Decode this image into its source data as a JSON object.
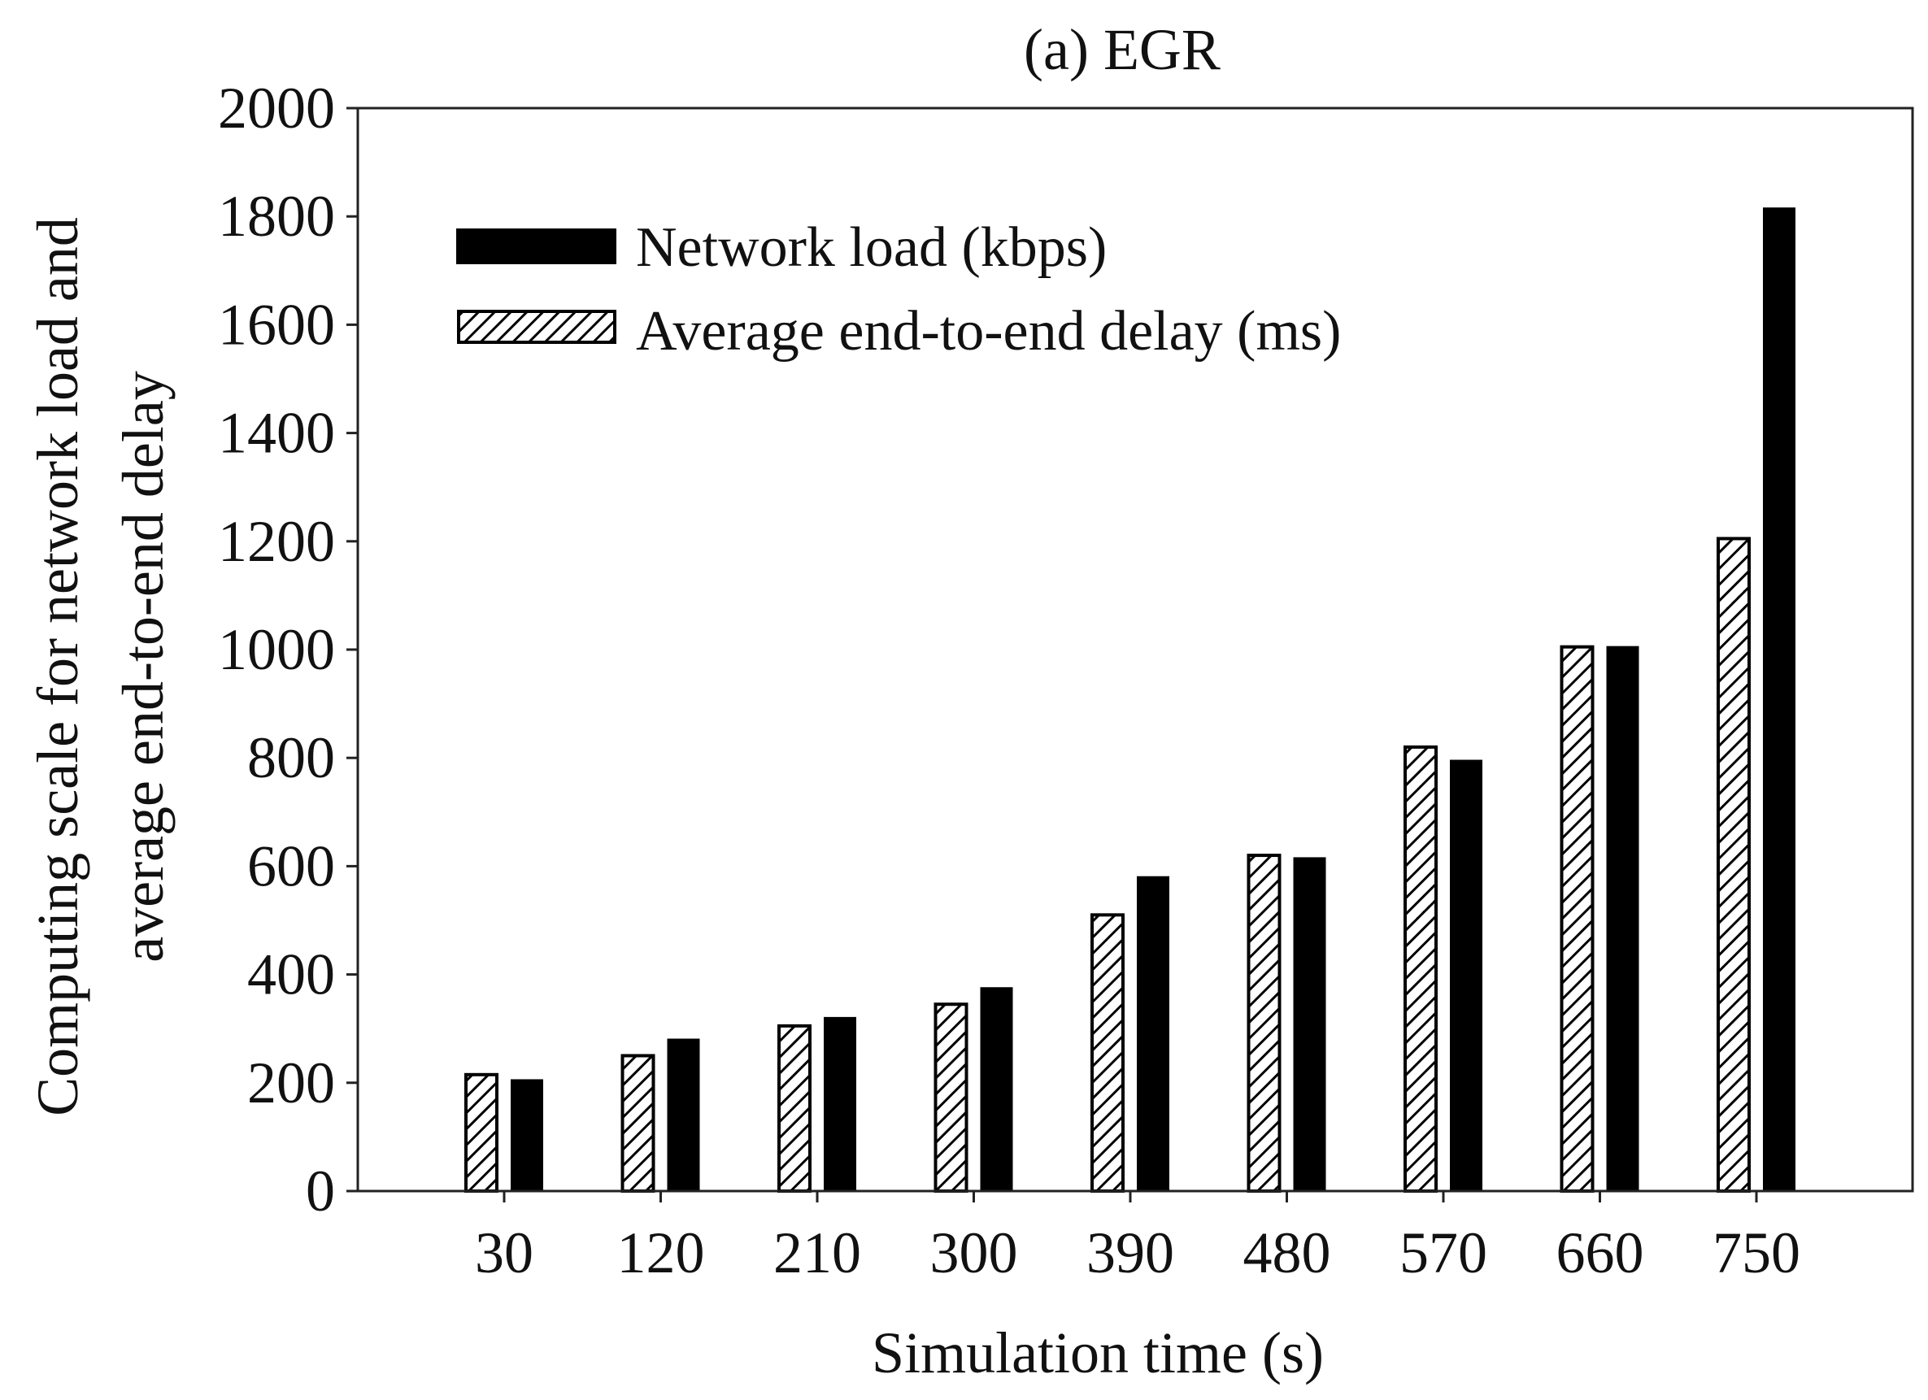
{
  "chart_data": {
    "type": "bar",
    "title": "(a) EGR",
    "xlabel": "Simulation time (s)",
    "ylabel_lines": [
      "Computing scale for network load and",
      "average end-to-end delay"
    ],
    "categories": [
      "30",
      "120",
      "210",
      "300",
      "390",
      "480",
      "570",
      "660",
      "750"
    ],
    "series": [
      {
        "name": "Average end-to-end delay (ms)",
        "style": "hatched",
        "values": [
          215,
          250,
          305,
          345,
          510,
          620,
          820,
          1005,
          1205
        ]
      },
      {
        "name": "Network load (kbps)",
        "style": "solid",
        "values": [
          205,
          280,
          320,
          375,
          580,
          615,
          795,
          1005,
          1815
        ]
      }
    ],
    "ylim": [
      0,
      2000
    ],
    "yticks": [
      0,
      200,
      400,
      600,
      800,
      1000,
      1200,
      1400,
      1600,
      1800,
      2000
    ],
    "legend": [
      {
        "label": "Network load (kbps)",
        "style": "solid"
      },
      {
        "label": "Average end-to-end delay (ms)",
        "style": "hatched"
      }
    ],
    "legend_position": "top-left",
    "grid": false
  }
}
